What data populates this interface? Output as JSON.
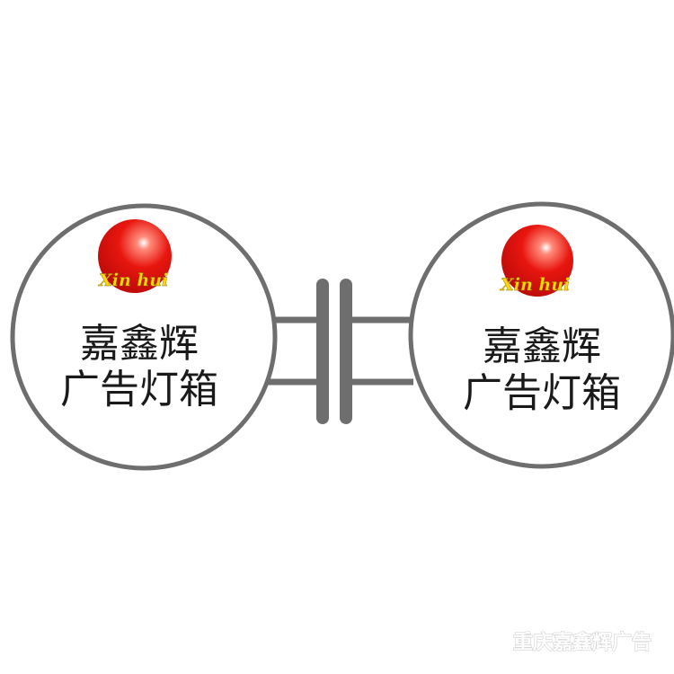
{
  "signs": [
    {
      "line1": "嘉鑫辉",
      "line2": "广告灯箱",
      "logo_text": "Xin hui"
    },
    {
      "line1": "嘉鑫辉",
      "line2": "广告灯箱",
      "logo_text": "Xin hui"
    }
  ],
  "watermark": "重庆嘉鑫辉广告",
  "colors": {
    "frame": "#6e6e6e",
    "logo_ball": "#e01010",
    "logo_text": "#ffd800",
    "background": "#ffffff"
  }
}
